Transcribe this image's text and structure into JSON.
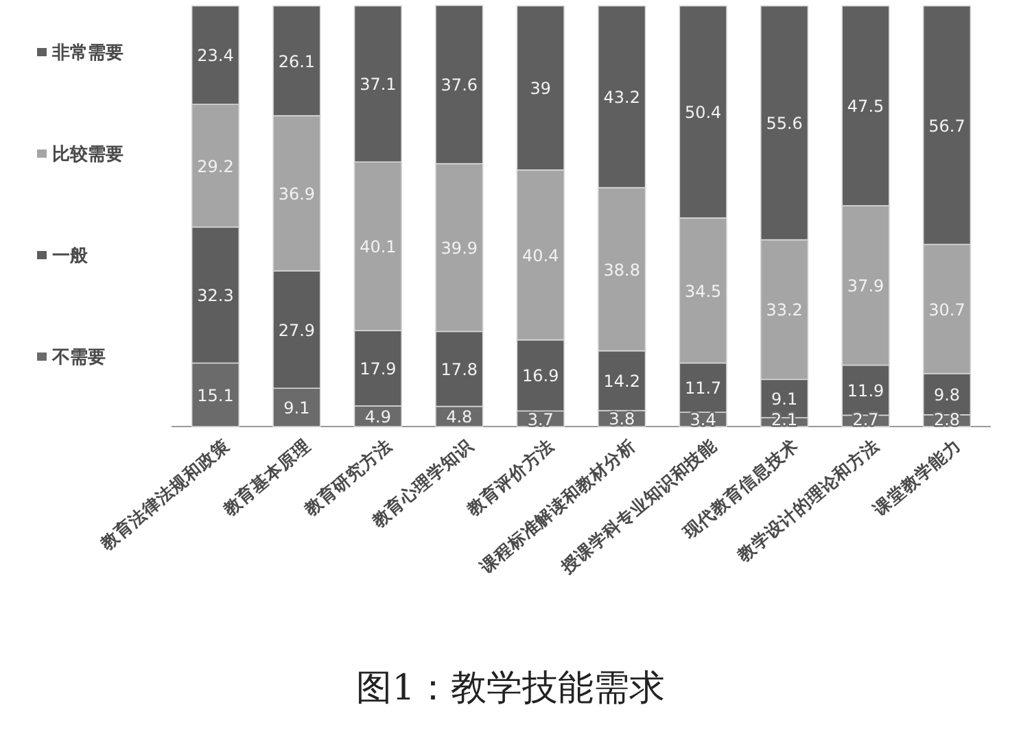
{
  "chart_data": {
    "type": "bar",
    "stacked": true,
    "data_labels": true,
    "legend": "left",
    "title": "图1：教学技能需求",
    "categories": [
      "教育法律法规和政策",
      "教育基本原理",
      "教育研究方法",
      "教育心理学知识",
      "教育评价方法",
      "课程标准解读和教材分析",
      "授课学科专业知识和技能",
      "现代教育信息技术",
      "教学设计的理论和方法",
      "课堂教学能力"
    ],
    "series": [
      {
        "name": "不需要",
        "color": "#6b6b6b",
        "values": [
          15.1,
          9.1,
          4.9,
          4.8,
          3.7,
          3.8,
          3.4,
          2.1,
          2.7,
          2.8
        ]
      },
      {
        "name": "一般",
        "color": "#5e5e5e",
        "values": [
          32.3,
          27.9,
          17.9,
          17.8,
          16.9,
          14.2,
          11.7,
          9.1,
          11.9,
          9.8
        ]
      },
      {
        "name": "比较需要",
        "color": "#a5a5a5",
        "values": [
          29.2,
          36.9,
          40.1,
          39.9,
          40.4,
          38.8,
          34.5,
          33.2,
          37.9,
          30.7
        ]
      },
      {
        "name": "非常需要",
        "color": "#5f5f5f",
        "values": [
          23.4,
          26.1,
          37.1,
          37.6,
          39,
          43.2,
          50.4,
          55.6,
          47.5,
          56.7
        ]
      }
    ]
  }
}
